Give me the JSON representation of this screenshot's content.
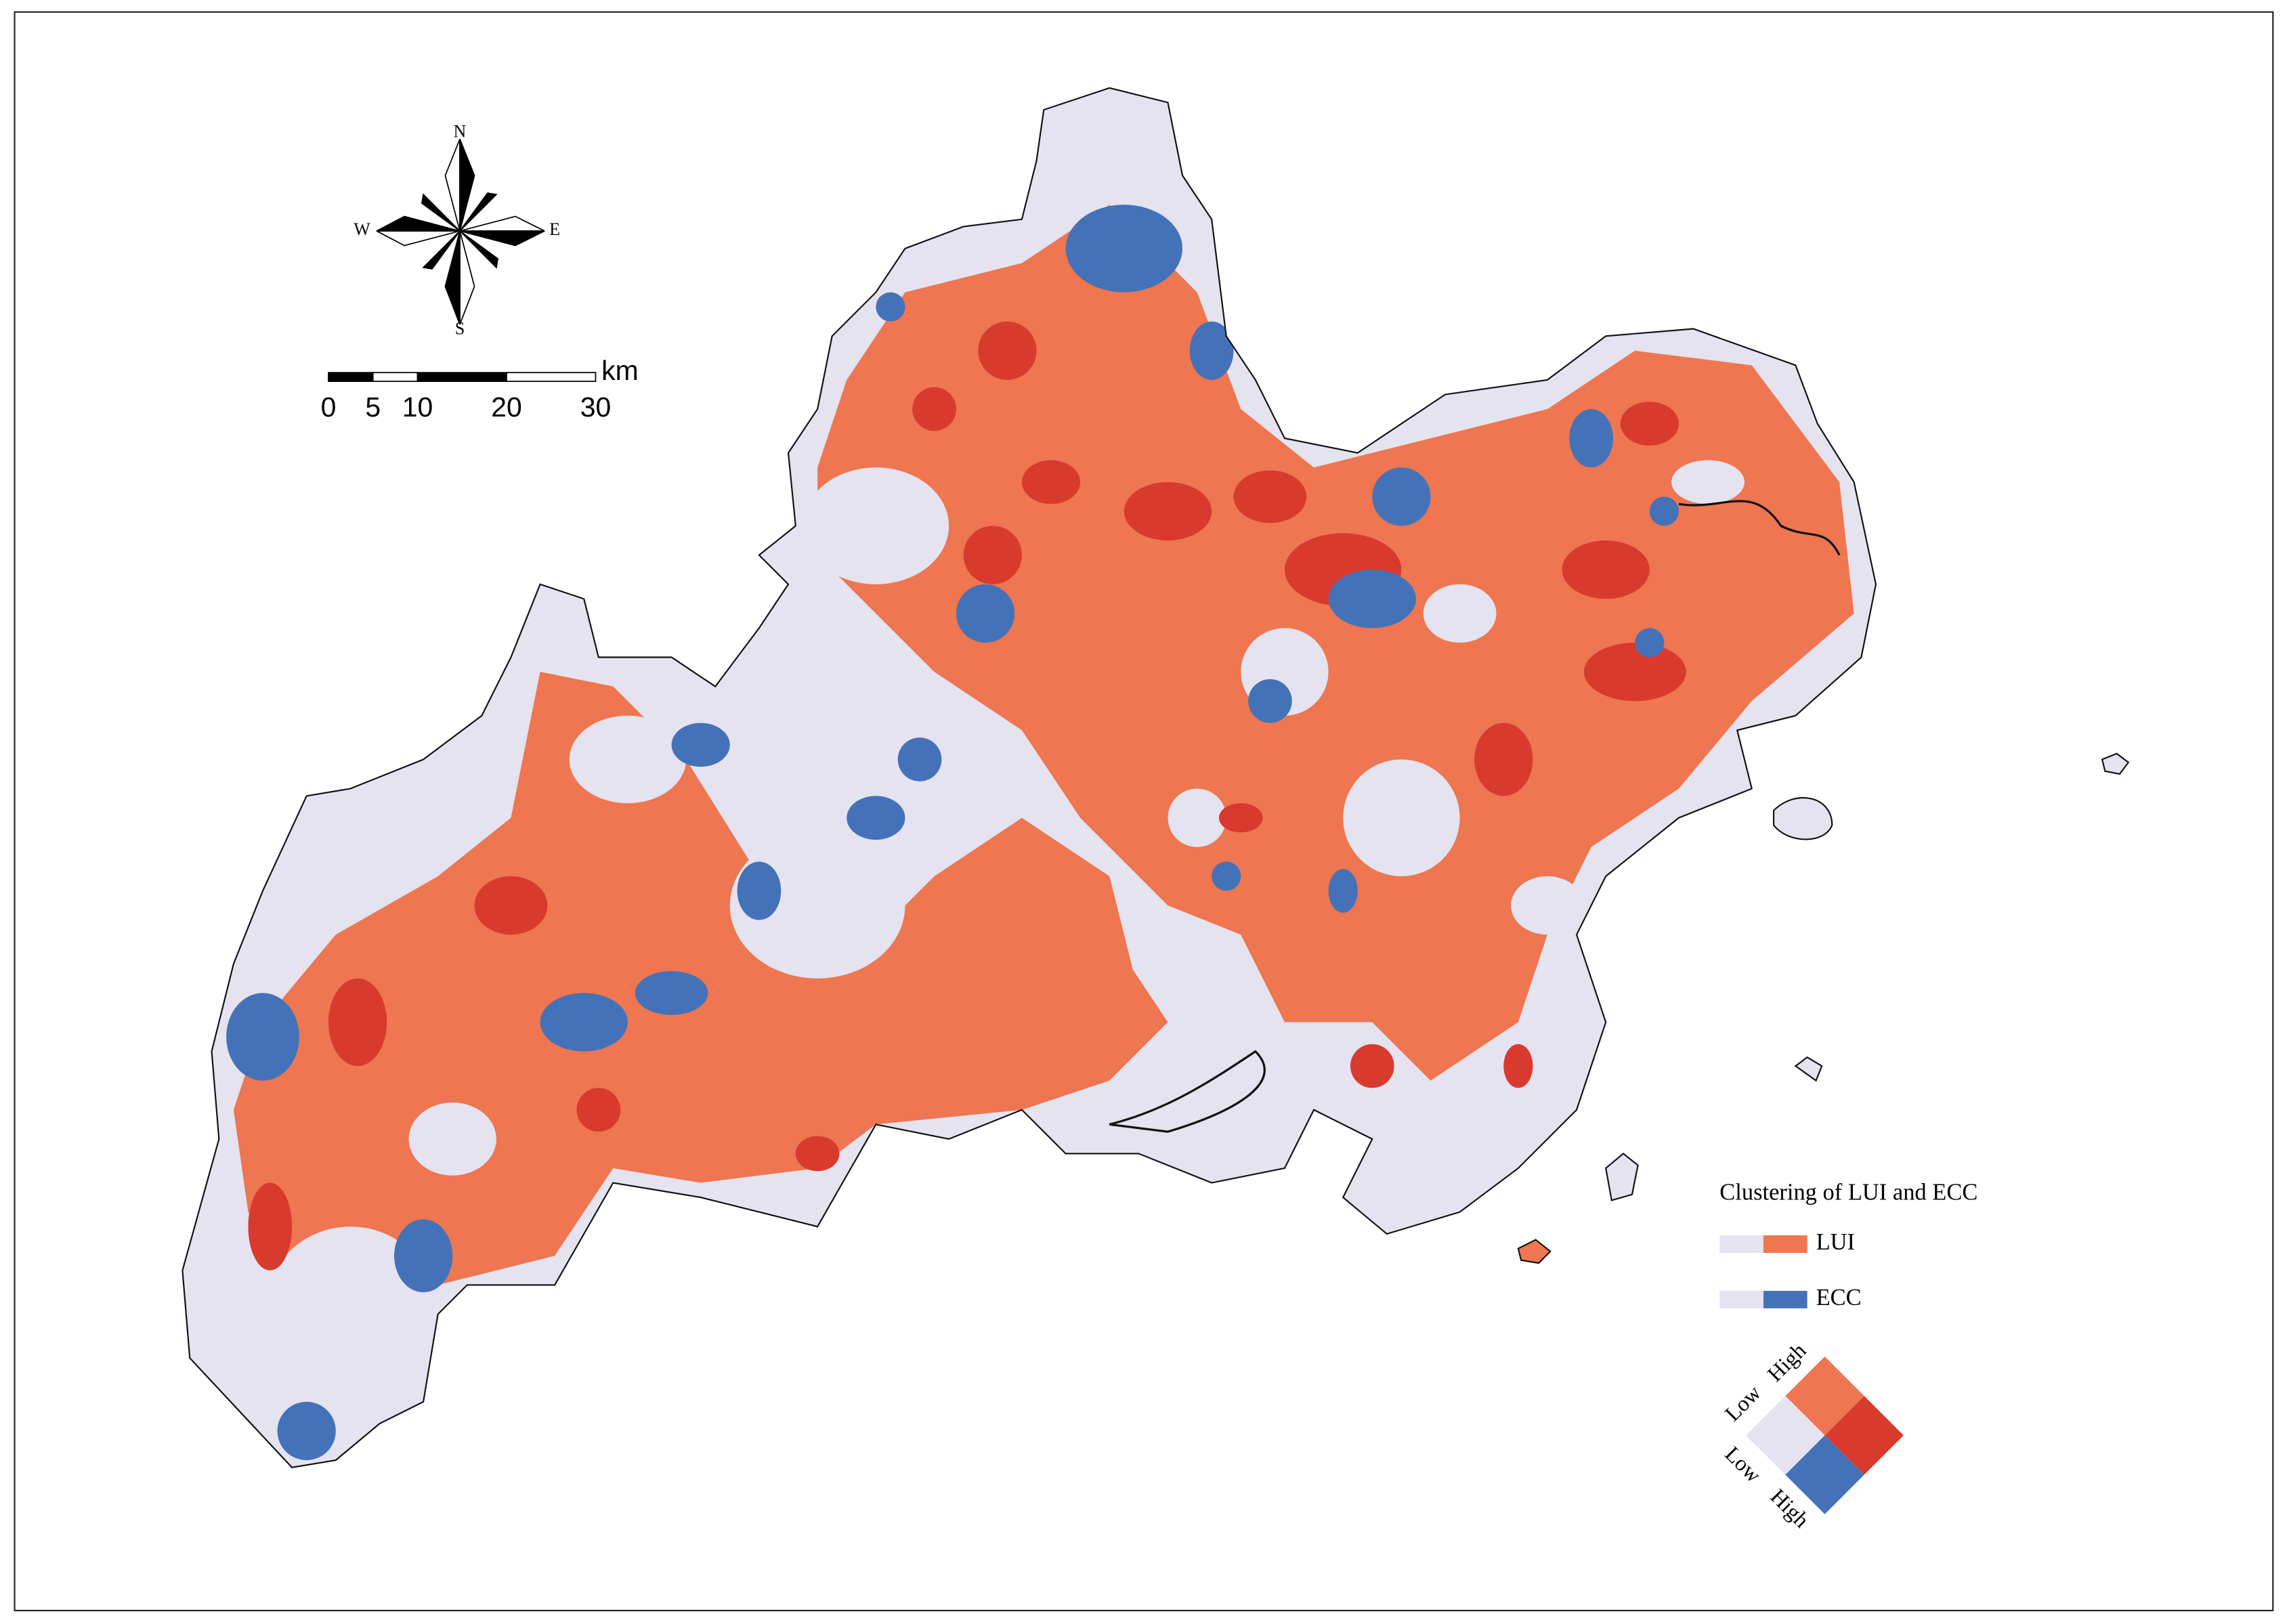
{
  "compass": {
    "north": "N",
    "east": "E",
    "south": "S",
    "west": "W"
  },
  "scale_bar": {
    "ticks": [
      0,
      5,
      10,
      20,
      30
    ],
    "unit": "km"
  },
  "legend": {
    "title": "Clustering of LUI and ECC",
    "colors": {
      "low": "#e4e3ef",
      "lui_high": "#ee7650",
      "ecc_high": "#4472b8",
      "both_high": "#d93a2e"
    },
    "rows": [
      "LUI",
      "ECC"
    ],
    "axes": [
      {
        "low": "Low",
        "high": "High"
      },
      {
        "low": "Low",
        "high": "High"
      }
    ]
  }
}
